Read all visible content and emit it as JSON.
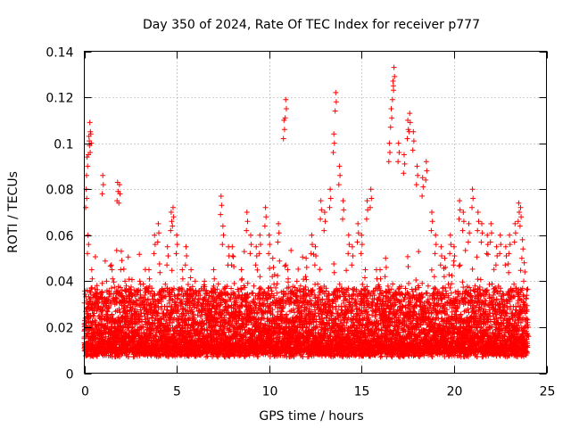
{
  "chart_data": {
    "type": "scatter",
    "title": "Day 350 of 2024, Rate Of TEC Index for receiver p777",
    "xlabel": "GPS time / hours",
    "ylabel": "ROTI / TECUs",
    "xlim": [
      0,
      25
    ],
    "ylim": [
      0,
      0.14
    ],
    "xticks": [
      0,
      5,
      10,
      15,
      20,
      25
    ],
    "yticks": [
      0,
      0.02,
      0.04,
      0.06,
      0.08,
      0.1,
      0.12,
      0.14
    ],
    "xtick_labels": [
      "0",
      "5",
      "10",
      "15",
      "20",
      "25"
    ],
    "ytick_labels": [
      "0",
      "0.02",
      "0.04",
      "0.06",
      "0.08",
      "0.1",
      "0.12",
      "0.14"
    ],
    "grid": true,
    "marker": "+",
    "color": "#ff0000",
    "series": [
      {
        "name": "ROTI",
        "description": "Dense band of points between ~0.005 and ~0.04 TECU/min across 0–24 h; representative sample of data points below",
        "points": [
          [
            0.0,
            0.015
          ],
          [
            0.1,
            0.08
          ],
          [
            0.15,
            0.094
          ],
          [
            0.2,
            0.06
          ],
          [
            0.25,
            0.103
          ],
          [
            0.3,
            0.109
          ],
          [
            0.35,
            0.104
          ],
          [
            0.4,
            0.045
          ],
          [
            0.5,
            0.03
          ],
          [
            0.7,
            0.035
          ],
          [
            1.0,
            0.086
          ],
          [
            1.2,
            0.04
          ],
          [
            1.5,
            0.045
          ],
          [
            1.8,
            0.083
          ],
          [
            1.9,
            0.082
          ],
          [
            2.0,
            0.053
          ],
          [
            2.2,
            0.04
          ],
          [
            2.5,
            0.035
          ],
          [
            3.0,
            0.04
          ],
          [
            3.5,
            0.045
          ],
          [
            3.8,
            0.06
          ],
          [
            4.0,
            0.065
          ],
          [
            4.5,
            0.055
          ],
          [
            4.7,
            0.07
          ],
          [
            4.8,
            0.072
          ],
          [
            5.0,
            0.06
          ],
          [
            5.3,
            0.045
          ],
          [
            5.5,
            0.055
          ],
          [
            6.0,
            0.04
          ],
          [
            6.5,
            0.04
          ],
          [
            7.0,
            0.045
          ],
          [
            7.4,
            0.077
          ],
          [
            7.5,
            0.064
          ],
          [
            7.8,
            0.055
          ],
          [
            8.0,
            0.055
          ],
          [
            8.5,
            0.045
          ],
          [
            8.8,
            0.07
          ],
          [
            9.0,
            0.06
          ],
          [
            9.3,
            0.055
          ],
          [
            9.5,
            0.06
          ],
          [
            9.8,
            0.072
          ],
          [
            10.0,
            0.06
          ],
          [
            10.2,
            0.05
          ],
          [
            10.5,
            0.065
          ],
          [
            10.8,
            0.11
          ],
          [
            10.9,
            0.119
          ],
          [
            11.0,
            0.045
          ],
          [
            11.5,
            0.04
          ],
          [
            12.0,
            0.05
          ],
          [
            12.3,
            0.06
          ],
          [
            12.5,
            0.055
          ],
          [
            12.8,
            0.075
          ],
          [
            13.0,
            0.07
          ],
          [
            13.3,
            0.08
          ],
          [
            13.5,
            0.104
          ],
          [
            13.6,
            0.122
          ],
          [
            13.8,
            0.09
          ],
          [
            14.0,
            0.075
          ],
          [
            14.3,
            0.06
          ],
          [
            14.5,
            0.055
          ],
          [
            14.8,
            0.065
          ],
          [
            15.0,
            0.06
          ],
          [
            15.3,
            0.075
          ],
          [
            15.5,
            0.08
          ],
          [
            15.8,
            0.045
          ],
          [
            16.0,
            0.045
          ],
          [
            16.3,
            0.05
          ],
          [
            16.5,
            0.1
          ],
          [
            16.6,
            0.115
          ],
          [
            16.7,
            0.127
          ],
          [
            16.75,
            0.133
          ],
          [
            17.0,
            0.1
          ],
          [
            17.3,
            0.095
          ],
          [
            17.5,
            0.11
          ],
          [
            17.6,
            0.113
          ],
          [
            17.8,
            0.105
          ],
          [
            18.0,
            0.09
          ],
          [
            18.3,
            0.085
          ],
          [
            18.5,
            0.092
          ],
          [
            18.8,
            0.07
          ],
          [
            19.0,
            0.06
          ],
          [
            19.3,
            0.055
          ],
          [
            19.5,
            0.05
          ],
          [
            19.8,
            0.06
          ],
          [
            20.0,
            0.055
          ],
          [
            20.3,
            0.075
          ],
          [
            20.5,
            0.07
          ],
          [
            20.8,
            0.065
          ],
          [
            21.0,
            0.08
          ],
          [
            21.3,
            0.07
          ],
          [
            21.5,
            0.065
          ],
          [
            21.8,
            0.06
          ],
          [
            22.0,
            0.065
          ],
          [
            22.3,
            0.055
          ],
          [
            22.5,
            0.06
          ],
          [
            22.8,
            0.055
          ],
          [
            23.0,
            0.06
          ],
          [
            23.3,
            0.065
          ],
          [
            23.5,
            0.074
          ],
          [
            23.6,
            0.072
          ],
          [
            23.7,
            0.058
          ],
          [
            23.8,
            0.048
          ],
          [
            24.0,
            0.02
          ]
        ]
      }
    ]
  }
}
